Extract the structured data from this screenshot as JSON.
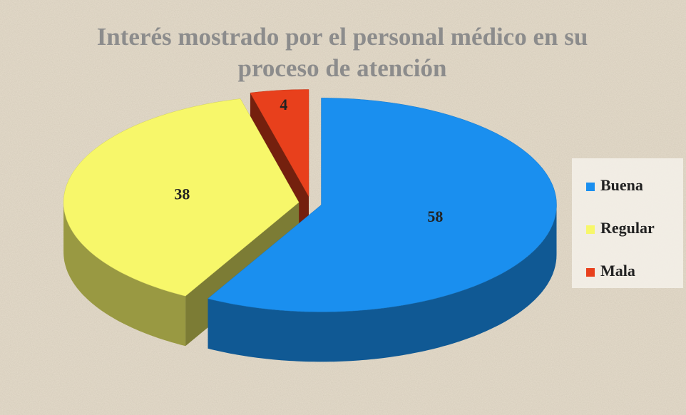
{
  "chart_data": {
    "type": "pie",
    "title": "Interés mostrado por el personal médico en su proceso de atención",
    "categories": [
      "Buena",
      "Regular",
      "Mala"
    ],
    "values": [
      58,
      38,
      4
    ],
    "colors": [
      "#1a8fef",
      "#f7f76a",
      "#e8401c"
    ],
    "legend": "right"
  }
}
